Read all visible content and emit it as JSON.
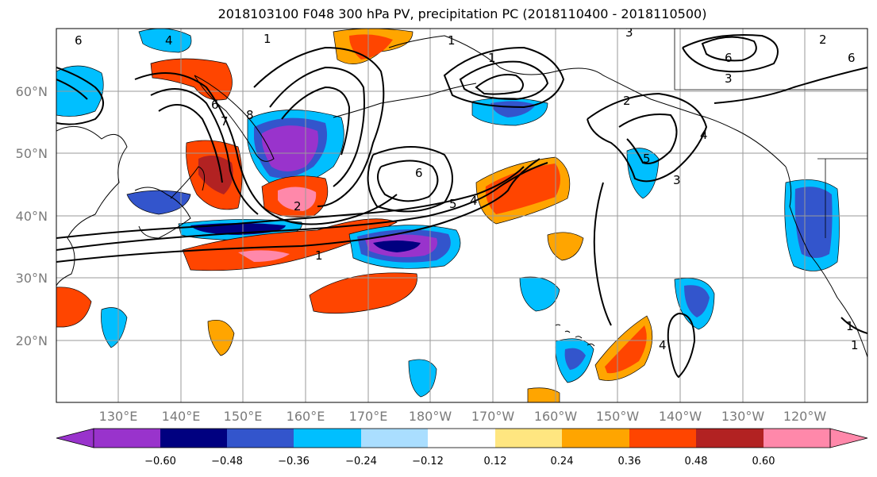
{
  "title": "2018103100 F048 300 hPa PV, precipitation PC (2018110400 - 2018110500)",
  "map": {
    "lat_labels": [
      "60°N",
      "50°N",
      "40°N",
      "30°N",
      "20°N"
    ],
    "lon_labels": [
      "130°E",
      "140°E",
      "150°E",
      "160°E",
      "170°E",
      "180°W",
      "170°W",
      "160°W",
      "150°W",
      "140°W",
      "130°W",
      "120°W"
    ],
    "contour_labels": [
      "6",
      "4",
      "1",
      "6",
      "7",
      "8",
      "2",
      "1",
      "6",
      "5",
      "4",
      "1",
      "2",
      "1",
      "6",
      "5",
      "4",
      "3",
      "2",
      "3",
      "1",
      "3",
      "6",
      "4",
      "1"
    ],
    "colors": {
      "c_neg060": "#9933cc",
      "c_neg048": "#000080",
      "c_neg036": "#3355cc",
      "c_neg024": "#00bfff",
      "c_neg012": "#aadeff",
      "c_zero": "#ffffff",
      "c_pos012": "#ffe680",
      "c_pos024": "#ffa500",
      "c_pos036": "#ff4500",
      "c_pos048": "#b22222",
      "c_pos060": "#ff88aa"
    }
  },
  "colorbar": {
    "ticks": [
      "−0.60",
      "−0.48",
      "−0.36",
      "−0.24",
      "−0.12",
      "0.12",
      "0.24",
      "0.36",
      "0.48",
      "0.60"
    ],
    "colors": [
      "#9933cc",
      "#000080",
      "#3355cc",
      "#00bfff",
      "#aadeff",
      "#ffffff",
      "#ffe680",
      "#ffa500",
      "#ff4500",
      "#b22222",
      "#ff88aa"
    ]
  }
}
